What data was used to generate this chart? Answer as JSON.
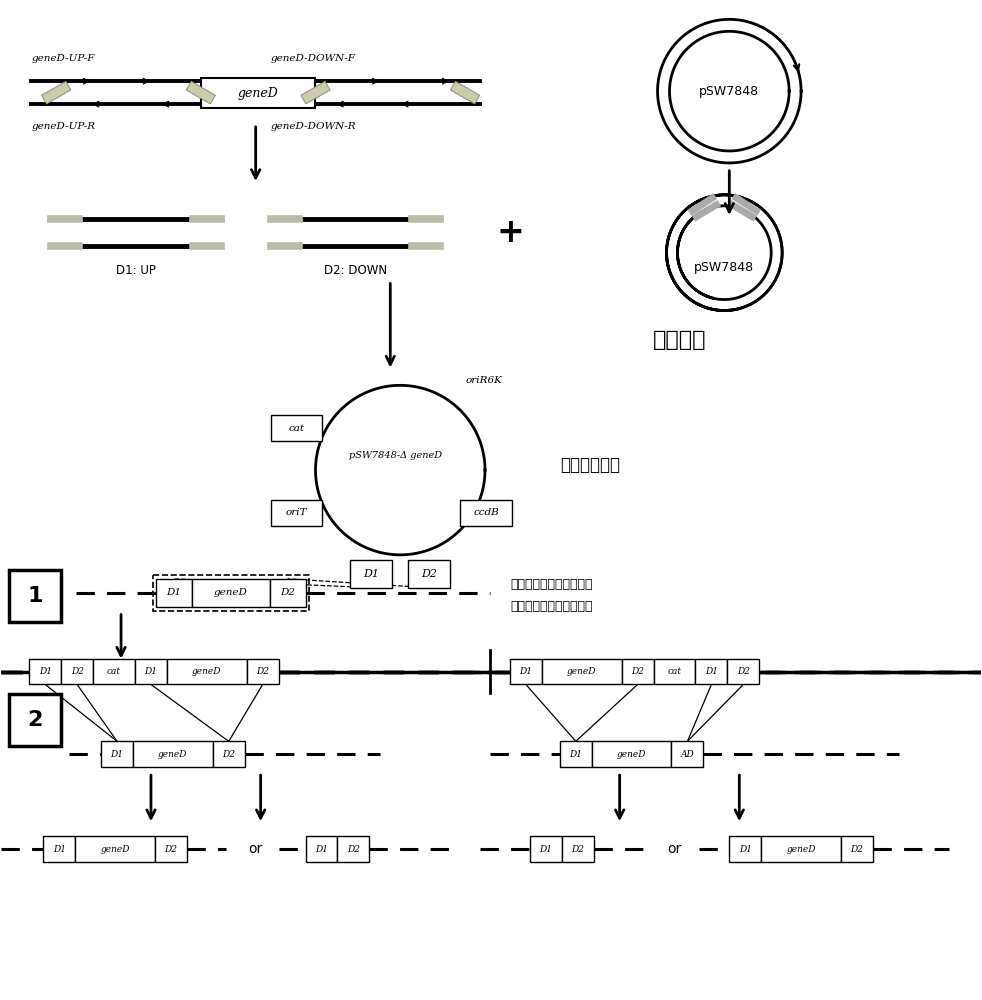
{
  "bg_color": "#ffffff",
  "chinese_isothermal": "等温组装",
  "chinese_recombinant": "重组自杀质粒",
  "chinese_genome_line1": "无水乙醇和十二烷基磺酸",
  "chinese_genome_line2": "钙刺激的哈维弧菌基因组",
  "label_geneD_UP_F": "geneD-UP-F",
  "label_geneD_UP_R": "geneD-UP-R",
  "label_geneD_DOWN_F": "geneD-DOWN-F",
  "label_geneD_DOWN_R": "geneD-DOWN-R",
  "label_geneD": "geneD",
  "label_pSW7848": "pSW7848",
  "label_D1_UP": "D1: UP",
  "label_D2_DOWN": "D2: DOWN",
  "label_oriR6K": "oriR6K",
  "label_cat": "cat",
  "label_pSW_delta": "pSW7848-Δ geneD",
  "label_oriT": "oriT",
  "label_ccdB": "ccdB",
  "label_D1": "D1",
  "label_D2": "D2",
  "label_or": "or",
  "label_AD": "AD",
  "label_1": "1",
  "label_2": "2",
  "gray_color": "#bbbbaa"
}
